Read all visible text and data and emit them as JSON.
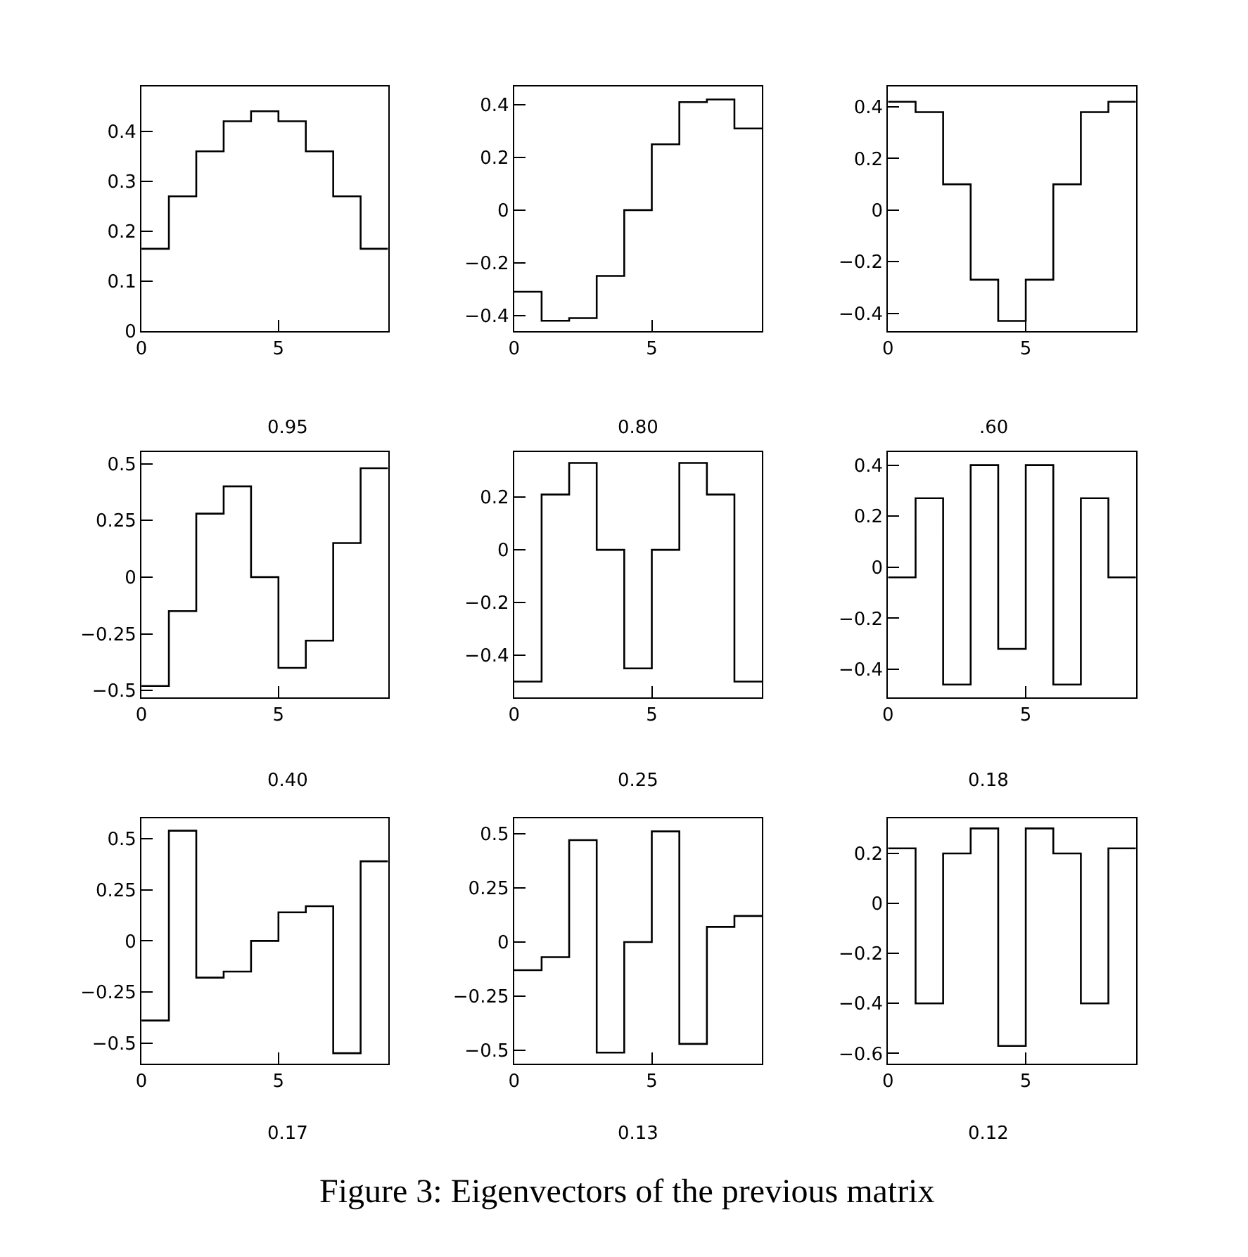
{
  "chart_data": [
    {
      "type": "histogram",
      "xlabel": "0.95",
      "bins": [
        0,
        1,
        2,
        3,
        4,
        5,
        6,
        7,
        8,
        9
      ],
      "values": [
        0.165,
        0.27,
        0.36,
        0.42,
        0.44,
        0.42,
        0.36,
        0.27,
        0.165
      ],
      "color": "#000000",
      "xlim": [
        0,
        9
      ],
      "xticks": [
        0,
        5
      ],
      "ylim": [
        0,
        0.49
      ],
      "yticks": [
        0,
        0.1,
        0.2,
        0.3,
        0.4
      ],
      "grid": false
    },
    {
      "type": "histogram",
      "xlabel": "0.80",
      "bins": [
        0,
        1,
        2,
        3,
        4,
        5,
        6,
        7,
        8,
        9
      ],
      "values": [
        -0.31,
        -0.42,
        -0.41,
        -0.25,
        0,
        0.25,
        0.41,
        0.42,
        0.31
      ],
      "color": "#000000",
      "xlim": [
        0,
        9
      ],
      "xticks": [
        0,
        5
      ],
      "ylim": [
        -0.46,
        0.47
      ],
      "yticks": [
        {
          "value": -0.4,
          "label": "−0.4"
        },
        {
          "value": -0.2,
          "label": "−0.2"
        },
        0,
        0.2,
        0.4
      ],
      "grid": false
    },
    {
      "type": "histogram",
      "xlabel": ".60",
      "bins": [
        0,
        1,
        2,
        3,
        4,
        5,
        6,
        7,
        8,
        9
      ],
      "values": [
        0.42,
        0.38,
        0.1,
        -0.27,
        -0.43,
        -0.27,
        0.1,
        0.38,
        0.42
      ],
      "color": "#000000",
      "xlim": [
        0,
        9
      ],
      "xticks": [
        0,
        5
      ],
      "ylim": [
        -0.47,
        0.48
      ],
      "yticks": [
        {
          "value": -0.4,
          "label": "−0.4"
        },
        {
          "value": -0.2,
          "label": "−0.2"
        },
        0,
        0.2,
        0.4
      ],
      "grid": false
    },
    {
      "type": "histogram",
      "xlabel": "0.40",
      "bins": [
        0,
        1,
        2,
        3,
        4,
        5,
        6,
        7,
        8,
        9
      ],
      "values": [
        -0.48,
        -0.15,
        0.28,
        0.4,
        0,
        -0.4,
        -0.28,
        0.15,
        0.48
      ],
      "color": "#000000",
      "xlim": [
        0,
        9
      ],
      "xticks": [
        0,
        5
      ],
      "ylim": [
        -0.53,
        0.55
      ],
      "yticks": [
        {
          "value": -0.5,
          "label": "−0.5"
        },
        {
          "value": -0.25,
          "label": "−0.25"
        },
        0,
        0.25,
        0.5
      ],
      "grid": false
    },
    {
      "type": "histogram",
      "xlabel": "0.25",
      "bins": [
        0,
        1,
        2,
        3,
        4,
        5,
        6,
        7,
        8,
        9
      ],
      "values": [
        -0.5,
        0.21,
        0.33,
        0,
        -0.45,
        0,
        0.33,
        0.21,
        -0.5
      ],
      "color": "#000000",
      "xlim": [
        0,
        9
      ],
      "xticks": [
        0,
        5
      ],
      "ylim": [
        -0.56,
        0.37
      ],
      "yticks": [
        {
          "value": -0.4,
          "label": "−0.4"
        },
        {
          "value": -0.2,
          "label": "−0.2"
        },
        0,
        0.2
      ],
      "grid": false
    },
    {
      "type": "histogram",
      "xlabel": "0.18",
      "bins": [
        0,
        1,
        2,
        3,
        4,
        5,
        6,
        7,
        8,
        9
      ],
      "values": [
        -0.04,
        0.27,
        -0.46,
        0.4,
        -0.32,
        0.4,
        -0.46,
        0.27,
        -0.04
      ],
      "color": "#000000",
      "xlim": [
        0,
        9
      ],
      "xticks": [
        0,
        5
      ],
      "ylim": [
        -0.51,
        0.45
      ],
      "yticks": [
        {
          "value": -0.4,
          "label": "−0.4"
        },
        {
          "value": -0.2,
          "label": "−0.2"
        },
        0,
        0.2,
        0.4
      ],
      "grid": false
    },
    {
      "type": "histogram",
      "xlabel": "0.17",
      "bins": [
        0,
        1,
        2,
        3,
        4,
        5,
        6,
        7,
        8,
        9
      ],
      "values": [
        -0.39,
        0.54,
        -0.18,
        -0.15,
        0,
        0.14,
        0.17,
        -0.55,
        0.39
      ],
      "color": "#000000",
      "xlim": [
        0,
        9
      ],
      "xticks": [
        0,
        5
      ],
      "ylim": [
        -0.6,
        0.6
      ],
      "yticks": [
        {
          "value": -0.5,
          "label": "−0.5"
        },
        {
          "value": -0.25,
          "label": "−0.25"
        },
        0,
        0.25,
        0.5
      ],
      "grid": false
    },
    {
      "type": "histogram",
      "xlabel": "0.13",
      "bins": [
        0,
        1,
        2,
        3,
        4,
        5,
        6,
        7,
        8,
        9
      ],
      "values": [
        -0.13,
        -0.07,
        0.47,
        -0.51,
        0,
        0.51,
        -0.47,
        0.07,
        0.12
      ],
      "color": "#000000",
      "xlim": [
        0,
        9
      ],
      "xticks": [
        0,
        5
      ],
      "ylim": [
        -0.56,
        0.57
      ],
      "yticks": [
        {
          "value": -0.5,
          "label": "−0.5"
        },
        {
          "value": -0.25,
          "label": "−0.25"
        },
        0,
        0.25,
        0.5
      ],
      "grid": false,
      "annotations": [
        "Figure 3: Eigenvectors of the previous matrix"
      ]
    },
    {
      "type": "histogram",
      "xlabel": "0.12",
      "bins": [
        0,
        1,
        2,
        3,
        4,
        5,
        6,
        7,
        8,
        9
      ],
      "values": [
        0.22,
        -0.4,
        0.2,
        0.3,
        -0.57,
        0.3,
        0.2,
        -0.4,
        0.22
      ],
      "color": "#000000",
      "xlim": [
        0,
        9
      ],
      "xticks": [
        0,
        5
      ],
      "ylim": [
        -0.64,
        0.34
      ],
      "yticks": [
        {
          "value": -0.6,
          "label": "−0.6"
        },
        {
          "value": -0.4,
          "label": "−0.4"
        },
        {
          "value": -0.2,
          "label": "−0.2"
        },
        0,
        0.2
      ],
      "grid": false
    }
  ]
}
